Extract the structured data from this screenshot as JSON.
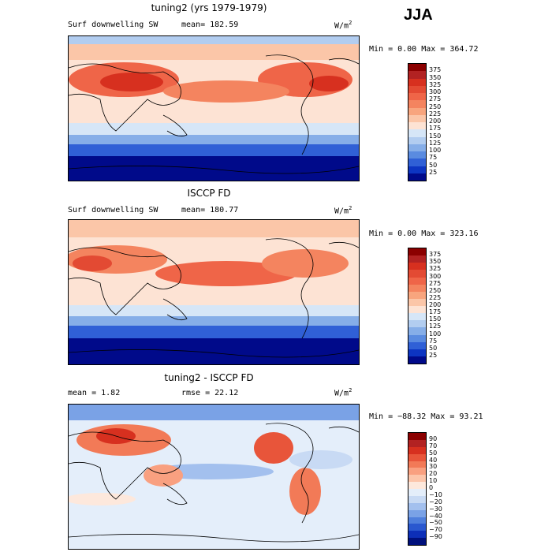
{
  "season": "JJA",
  "units": "W/m",
  "units_sup": "2",
  "panels": [
    {
      "title": "tuning2 (yrs 1979-1979)",
      "left_label": "Surf downwelling SW",
      "center_label": "mean= 182.59",
      "minmax": "Min =    0.00 Max = 364.72",
      "ticks": [
        "375",
        "350",
        "325",
        "300",
        "275",
        "250",
        "225",
        "200",
        "175",
        "150",
        "125",
        "100",
        "75",
        "50",
        "25"
      ]
    },
    {
      "title": "ISCCP FD",
      "left_label": "Surf downwelling SW",
      "center_label": "mean= 180.77",
      "minmax": "Min =    0.00 Max = 323.16",
      "ticks": [
        "375",
        "350",
        "325",
        "300",
        "275",
        "250",
        "225",
        "200",
        "175",
        "150",
        "125",
        "100",
        "75",
        "50",
        "25"
      ]
    },
    {
      "title": "tuning2 - ISCCP FD",
      "left_label": "mean =    1.82",
      "center_label": "rmse =   22.12",
      "minmax": "Min = −88.32 Max =  93.21",
      "ticks": [
        "90",
        "70",
        "50",
        "40",
        "30",
        "20",
        "10",
        "0",
        "−10",
        "−20",
        "−30",
        "−40",
        "−50",
        "−70",
        "−90"
      ]
    }
  ],
  "colors": {
    "sw_scale": [
      "#8b0000",
      "#b22222",
      "#d7301f",
      "#e34a33",
      "#ef6548",
      "#f4845f",
      "#f8a57e",
      "#fbc6a8",
      "#fde3d4",
      "#d6e6f7",
      "#b2cdf0",
      "#86aee8",
      "#5a8be0",
      "#3060d6",
      "#0d35c2",
      "#000a8a"
    ],
    "diff_scale": [
      "#8b0000",
      "#b22222",
      "#d7301f",
      "#e8553a",
      "#f27a57",
      "#f9a080",
      "#fcc5aa",
      "#fde8dc",
      "#e4eefa",
      "#c8daf4",
      "#a3c0ee",
      "#7aa2e6",
      "#4f7fdc",
      "#2a58cf",
      "#0d2fb8",
      "#00107c"
    ]
  }
}
